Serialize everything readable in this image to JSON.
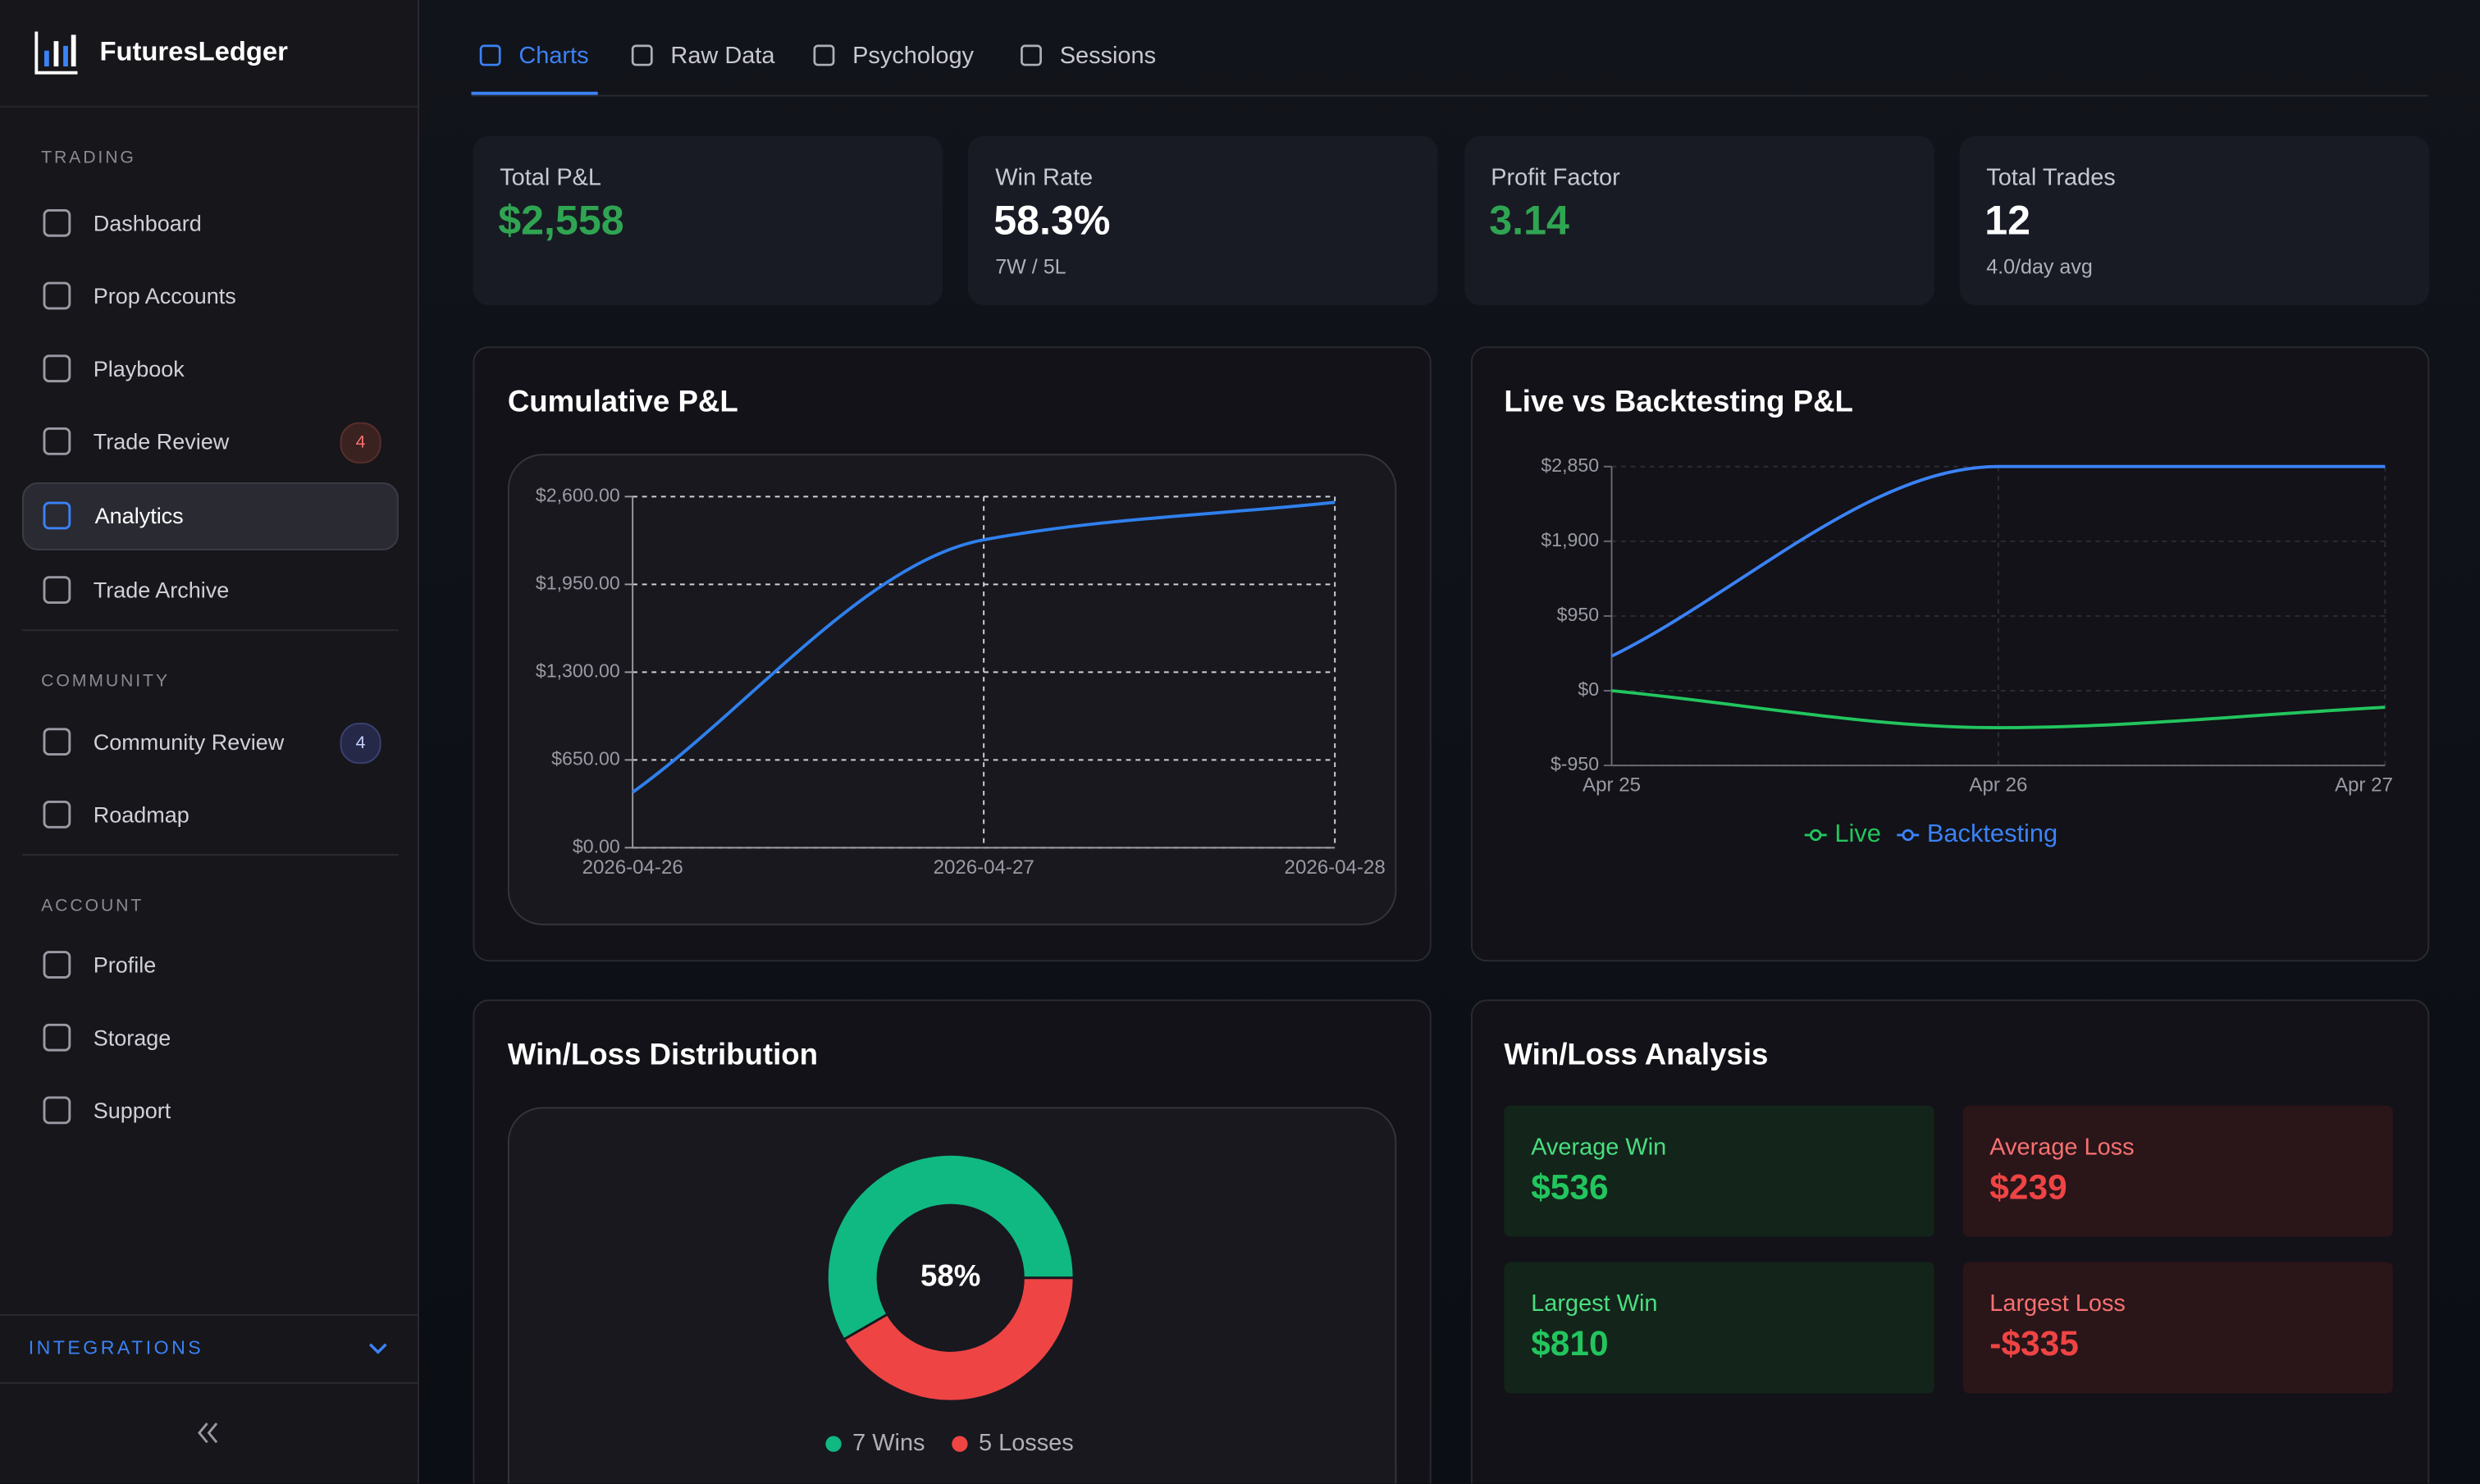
{
  "brand": "FuturesLedger",
  "sidebar": {
    "sections": [
      {
        "title": "TRADING",
        "items": [
          {
            "label": "Dashboard"
          },
          {
            "label": "Prop Accounts"
          },
          {
            "label": "Playbook"
          },
          {
            "label": "Trade Review",
            "badge": 4
          },
          {
            "label": "Analytics",
            "active": true
          },
          {
            "label": "Trade Archive"
          }
        ]
      },
      {
        "title": "COMMUNITY",
        "items": [
          {
            "label": "Community Review",
            "badge": 4
          },
          {
            "label": "Roadmap"
          }
        ]
      },
      {
        "title": "ACCOUNT",
        "items": [
          {
            "label": "Profile"
          },
          {
            "label": "Storage"
          },
          {
            "label": "Support"
          }
        ]
      }
    ],
    "integrations": "INTEGRATIONS"
  },
  "tabs": [
    {
      "label": "Charts",
      "active": true
    },
    {
      "label": "Raw Data"
    },
    {
      "label": "Psychology"
    },
    {
      "label": "Sessions"
    }
  ],
  "stats": [
    {
      "label": "Total P&L",
      "value": "$2,558",
      "color": "#2fa552"
    },
    {
      "label": "Win Rate",
      "value": "58.3%",
      "sub": "7W / 5L",
      "color": "#ffffff"
    },
    {
      "label": "Profit Factor",
      "value": "3.14",
      "color": "#2fa552"
    },
    {
      "label": "Total Trades",
      "value": "12",
      "sub": "4.0/day avg",
      "color": "#ffffff"
    }
  ],
  "chart_data": [
    {
      "type": "line",
      "title": "Cumulative P&L",
      "x": [
        "2026-04-26",
        "2026-04-27",
        "2026-04-28"
      ],
      "values": [
        410,
        2280,
        2558
      ],
      "color": "#2f80ed",
      "ylim": [
        0,
        2600
      ],
      "yticks": [
        {
          "value": 0,
          "label": "$0.00"
        },
        {
          "value": 650,
          "label": "$650.00"
        },
        {
          "value": 1300,
          "label": "$1,300.00"
        },
        {
          "value": 1950,
          "label": "$1,950.00"
        },
        {
          "value": 2600,
          "label": "$2,600.00"
        }
      ],
      "grid": true
    },
    {
      "type": "line",
      "title": "Live vs Backtesting P&L",
      "x": [
        "Apr 25",
        "Apr 26",
        "Apr 27"
      ],
      "series": [
        {
          "name": "Live",
          "color": "#22c55e",
          "values": [
            0,
            -470,
            -210
          ]
        },
        {
          "name": "Backtesting",
          "color": "#3b82f6",
          "values": [
            440,
            2850,
            2850
          ]
        }
      ],
      "ylim": [
        -950,
        2850
      ],
      "yticks": [
        {
          "value": -950,
          "label": "$-950"
        },
        {
          "value": 0,
          "label": "$0"
        },
        {
          "value": 950,
          "label": "$950"
        },
        {
          "value": 1900,
          "label": "$1,900"
        },
        {
          "value": 2850,
          "label": "$2,850"
        }
      ],
      "grid": true,
      "legend": "bottom"
    },
    {
      "type": "donut",
      "title": "Win/Loss Distribution",
      "categories": [
        "7 Wins",
        "5 Losses"
      ],
      "values": [
        7,
        5
      ],
      "colors": [
        "#10b981",
        "#ef4444"
      ],
      "center_label": "58%"
    }
  ],
  "analysis": {
    "title": "Win/Loss Analysis",
    "cards": [
      {
        "label": "Average Win",
        "value": "$536",
        "kind": "win"
      },
      {
        "label": "Average Loss",
        "value": "$239",
        "kind": "loss"
      },
      {
        "label": "Largest Win",
        "value": "$810",
        "kind": "win"
      },
      {
        "label": "Largest Loss",
        "value": "-$335",
        "kind": "loss"
      }
    ]
  }
}
